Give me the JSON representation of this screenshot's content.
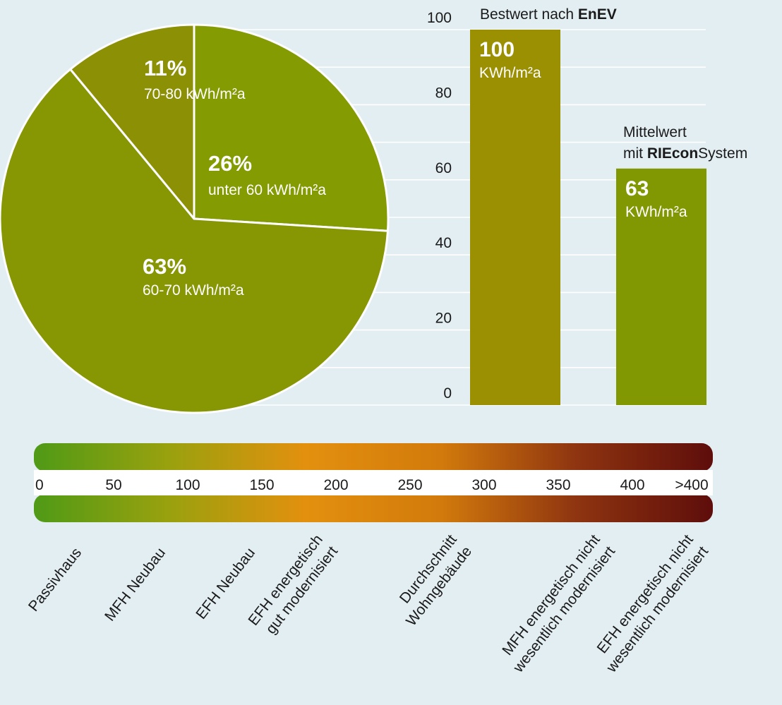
{
  "chart_data": [
    {
      "type": "pie",
      "slices": [
        {
          "value": 26,
          "percent_label": "26%",
          "range_label": "unter 60 kWh/m²a",
          "color": "#849b02"
        },
        {
          "value": 63,
          "percent_label": "63%",
          "range_label": "60-70 kWh/m²a",
          "color": "#879603"
        },
        {
          "value": 11,
          "percent_label": "11%",
          "range_label": "70-80  kWh/m²a",
          "color": "#8c9004"
        }
      ]
    },
    {
      "type": "bar",
      "ylim": [
        0,
        100
      ],
      "y_ticks": [
        0,
        20,
        40,
        60,
        80,
        100
      ],
      "bars": [
        {
          "value": 100,
          "value_label": "100",
          "unit_label": "KWh/m²a",
          "caption_parts": [
            "Bestwert nach ",
            "EnEV"
          ],
          "color": "#9b8f02"
        },
        {
          "value": 63,
          "value_label": "63",
          "unit_label": "KWh/m²a",
          "caption_line1": "Mittelwert",
          "caption_line2_parts": [
            "mit ",
            "RIEcon",
            "System"
          ],
          "color": "#829802"
        }
      ]
    },
    {
      "type": "scale",
      "ticks": [
        {
          "label": "0",
          "value": 0
        },
        {
          "label": "50",
          "value": 50
        },
        {
          "label": "100",
          "value": 100
        },
        {
          "label": "150",
          "value": 150
        },
        {
          "label": "200",
          "value": 200
        },
        {
          "label": "250",
          "value": 250
        },
        {
          "label": "300",
          "value": 300
        },
        {
          "label": "350",
          "value": 350
        },
        {
          "label": "400",
          "value": 400
        },
        {
          "label": ">400",
          "value": 440
        }
      ],
      "gradient_colors": [
        "#4f9a16",
        "#9aa10e",
        "#e3900e",
        "#d27a0c",
        "#8e3410",
        "#5e0d0b"
      ],
      "categories": [
        {
          "lines": [
            "Passivhaus"
          ],
          "value": 15
        },
        {
          "lines": [
            "MFH Neubau"
          ],
          "value": 75
        },
        {
          "lines": [
            "EFH Neubau"
          ],
          "value": 130
        },
        {
          "lines": [
            "EFH energetisch",
            "gut modernisiert"
          ],
          "value": 185
        },
        {
          "lines": [
            "Durchschnitt",
            "Wohngebäude"
          ],
          "value": 270
        },
        {
          "lines": [
            "MFH energetisch nicht",
            "wesentlich modernisiert"
          ],
          "value": 360
        },
        {
          "lines": [
            "EFH energetisch nicht",
            "wesentlich modernisiert"
          ],
          "value": 420
        }
      ]
    }
  ]
}
